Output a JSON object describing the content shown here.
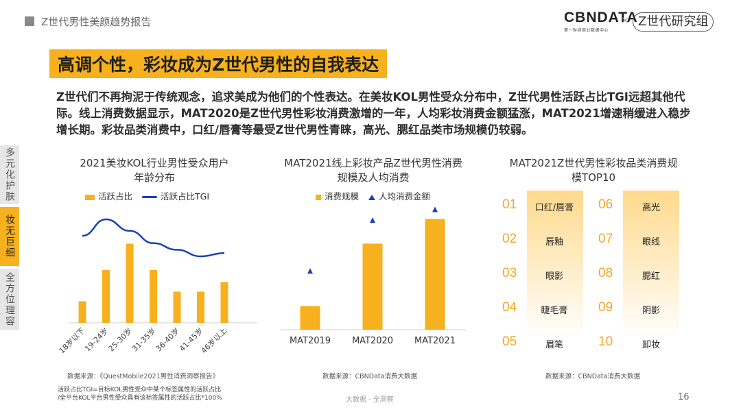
{
  "header": {
    "report_title": "Z世代男性美颜趋势报告",
    "brand_name": "CBNDATA",
    "brand_sub": "第一财经商业数据中心",
    "brand_separator": "×",
    "partner": "Z世代研究组"
  },
  "headline": "高调个性，彩妆成为Z世代男性的自我表达",
  "paragraph": "Z世代们不再拘泥于传统观念，追求美成为他们的个性表达。在美妆KOL男性受众分布中，Z世代男性活跃占比TGI远超其他代际。线上消费数据显示，MAT2020是Z世代男性彩妆消费激增的一年，人均彩妆消费金额猛涨，MAT2021增速稍缓进入稳步增长期。彩妆品类消费中，口红/唇膏等最受Z世代男性青睐，高光、腮红品类市场规模仍较弱。",
  "side_tabs": [
    {
      "label": "多元化护肤",
      "active": false
    },
    {
      "label": "妆无巨细",
      "active": true
    },
    {
      "label": "全方位理容",
      "active": false
    }
  ],
  "colors": {
    "accent": "#f7b11e",
    "line": "#1a3fb8",
    "number": "#f5a623"
  },
  "chart_data": [
    {
      "type": "bar",
      "title": "2021美妆KOL行业男性受众用户年龄分布",
      "categories": [
        "18岁以下",
        "19-24岁",
        "25-30岁",
        "31-35岁",
        "36-40岁",
        "41-45岁",
        "46岁以上"
      ],
      "series": [
        {
          "name": "活跃占比",
          "kind": "bar",
          "values": [
            9,
            22,
            33,
            22,
            13,
            13,
            17
          ]
        },
        {
          "name": "活跃占比TGI",
          "kind": "line",
          "values": [
            120,
            160,
            132,
            102,
            86,
            70,
            78
          ]
        }
      ],
      "source": "数据来源：《QuestMobile2021男性消费洞察报告》"
    },
    {
      "type": "bar",
      "title": "MAT2021线上彩妆产品Z世代男性消费规模及人均消费",
      "categories": [
        "MAT2019",
        "MAT2020",
        "MAT2021"
      ],
      "series": [
        {
          "name": "消费规模",
          "kind": "bar",
          "values": [
            20,
            73,
            94
          ]
        },
        {
          "name": "人均消费金额",
          "kind": "marker",
          "values": [
            44,
            82,
            90
          ]
        }
      ],
      "source": "数据来源：CBNData消费大数据"
    },
    {
      "type": "table",
      "title": "MAT2021Z世代男性彩妆品类消费规模TOP10",
      "items": [
        {
          "rank": "01",
          "name": "口红/唇膏"
        },
        {
          "rank": "02",
          "name": "唇釉"
        },
        {
          "rank": "03",
          "name": "眼影"
        },
        {
          "rank": "04",
          "name": "睫毛膏"
        },
        {
          "rank": "05",
          "name": "眉笔"
        },
        {
          "rank": "06",
          "name": "高光"
        },
        {
          "rank": "07",
          "name": "眼线"
        },
        {
          "rank": "08",
          "name": "腮红"
        },
        {
          "rank": "09",
          "name": "阴影"
        },
        {
          "rank": "10",
          "name": "卸妆"
        }
      ],
      "source": "数据来源：CBNData消费大数据"
    }
  ],
  "footnote": [
    "活跃占比TGI=目标KOL男性受众中某个标签属性的活跃占比",
    "/全平台KOL平台男性受众具有该标签属性的活跃占比*100%"
  ],
  "footer": {
    "center": "大数据 · 全洞察",
    "page": "16"
  }
}
